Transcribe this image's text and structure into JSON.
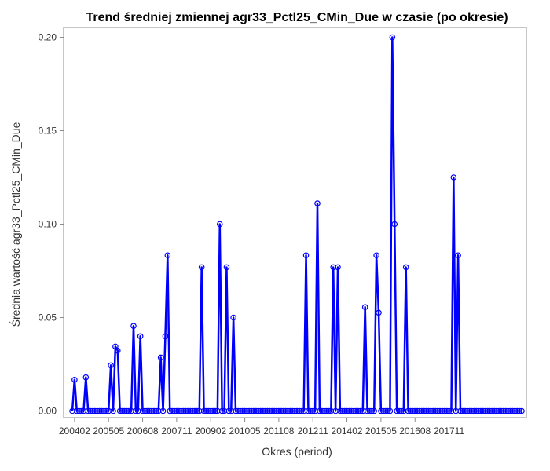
{
  "chart_data": {
    "type": "line",
    "title": "Trend średniej zmiennej agr33_Pctl25_CMin_Due w czasie (po okresie)",
    "xlabel": "Okres (period)",
    "ylabel": "Średnia wartość agr33_Pctl25_CMin_Due",
    "ylim": [
      0,
      0.2
    ],
    "yticks": [
      "0.00",
      "0.05",
      "0.10",
      "0.15",
      "0.20"
    ],
    "xticks": [
      "200402",
      "200505",
      "200608",
      "200711",
      "200902",
      "201005",
      "201108",
      "201211",
      "201402",
      "201505",
      "201608",
      "201711"
    ],
    "start_period": "200401",
    "colors": {
      "line": "#0000ff",
      "marker": "#0000ff"
    },
    "series": [
      {
        "values": [
          0,
          0.0167,
          0,
          0,
          0,
          0,
          0.018,
          0,
          0,
          0,
          0,
          0,
          0,
          0,
          0,
          0,
          0,
          0.0244,
          0,
          0.0345,
          0.0323,
          0,
          0,
          0,
          0,
          0,
          0,
          0.0455,
          0,
          0,
          0.04,
          0,
          0,
          0,
          0,
          0,
          0,
          0,
          0,
          0.0286,
          0,
          0.04,
          0.0833,
          0,
          0,
          0,
          0,
          0,
          0,
          0,
          0,
          0,
          0,
          0,
          0,
          0,
          0,
          0.0769,
          0,
          0,
          0,
          0,
          0,
          0,
          0,
          0.1,
          0,
          0,
          0.0769,
          0,
          0,
          0.05,
          0,
          0,
          0,
          0,
          0,
          0,
          0,
          0,
          0,
          0,
          0,
          0,
          0,
          0,
          0,
          0,
          0,
          0,
          0,
          0,
          0,
          0,
          0,
          0,
          0,
          0,
          0,
          0,
          0,
          0,
          0,
          0.0833,
          0,
          0,
          0,
          0,
          0.1111,
          0,
          0,
          0,
          0,
          0,
          0,
          0.0769,
          0,
          0.0769,
          0,
          0,
          0,
          0,
          0,
          0,
          0,
          0,
          0,
          0,
          0,
          0.0556,
          0,
          0,
          0,
          0,
          0.0833,
          0.0526,
          0,
          0,
          0,
          0,
          0,
          0.2,
          0.1,
          0,
          0,
          0,
          0,
          0.0769,
          0,
          0,
          0,
          0,
          0,
          0,
          0,
          0,
          0,
          0,
          0,
          0,
          0,
          0,
          0,
          0,
          0,
          0,
          0,
          0,
          0.125,
          0,
          0.0833,
          0,
          0,
          0,
          0,
          0,
          0,
          0,
          0,
          0,
          0,
          0,
          0,
          0,
          0,
          0,
          0,
          0,
          0,
          0,
          0,
          0,
          0,
          0,
          0,
          0,
          0,
          0,
          0
        ]
      }
    ]
  }
}
